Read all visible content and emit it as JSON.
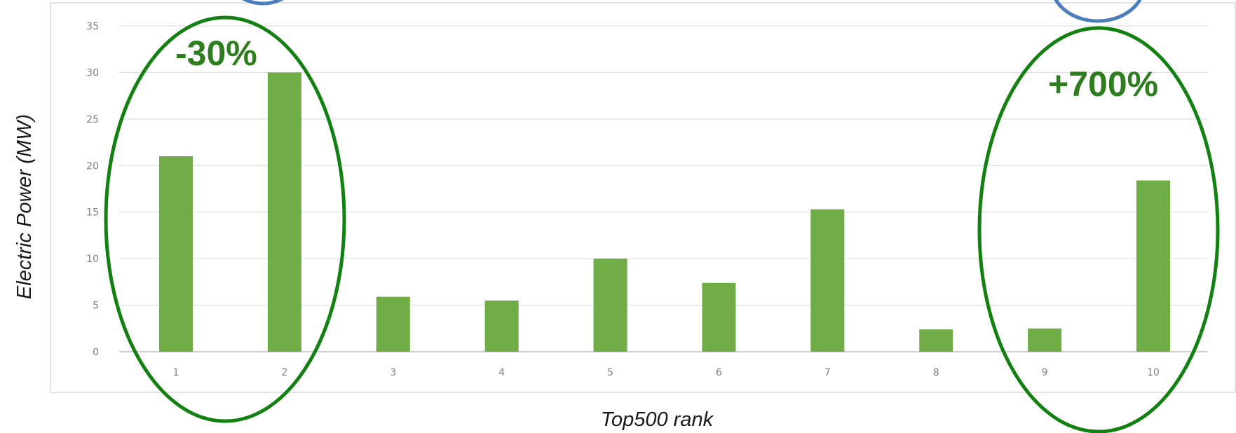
{
  "chart_data": {
    "type": "bar",
    "categories": [
      "1",
      "2",
      "3",
      "4",
      "5",
      "6",
      "7",
      "8",
      "9",
      "10"
    ],
    "values": [
      21.0,
      30.0,
      5.9,
      5.5,
      10.0,
      7.4,
      15.3,
      2.4,
      2.5,
      18.4
    ],
    "xlabel": "Top500 rank",
    "ylabel": "Electric Power (MW)",
    "ylim": [
      0,
      35
    ],
    "yticks": [
      0,
      5,
      10,
      15,
      20,
      25,
      30,
      35
    ],
    "grid": true,
    "legend": "none",
    "bar_color": "#70ad47",
    "annotations": [
      {
        "text": "-30%",
        "encloses": [
          "1",
          "2"
        ],
        "color": "#2e7d1f"
      },
      {
        "text": "+700%",
        "encloses": [
          "9",
          "10"
        ],
        "color": "#2e7d1f"
      }
    ],
    "ellipse_color": "#138012",
    "partial_circle_color": "#4a7ebb"
  }
}
